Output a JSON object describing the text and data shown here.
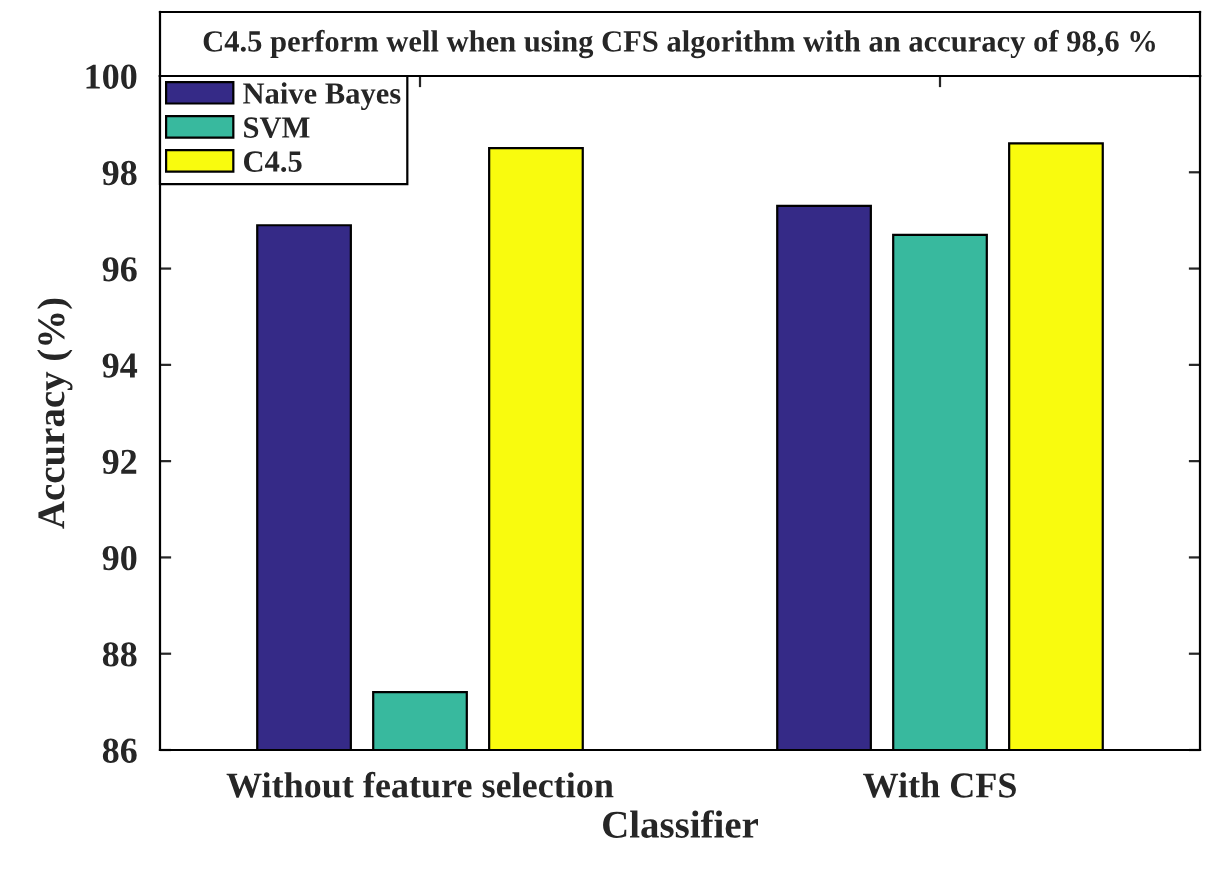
{
  "chart_data": {
    "type": "bar",
    "title": "C4.5 perform well when using CFS algorithm with an accuracy of 98,6 %",
    "xlabel": "Classifier",
    "ylabel": "Accuracy (%)",
    "categories": [
      "Without feature selection",
      "With CFS"
    ],
    "series": [
      {
        "name": "Naive Bayes",
        "color": "#352a87",
        "values": [
          96.9,
          97.3
        ]
      },
      {
        "name": "SVM",
        "color": "#38b99e",
        "values": [
          87.2,
          96.7
        ]
      },
      {
        "name": "C4.5",
        "color": "#f9fb0e",
        "values": [
          98.5,
          98.6
        ]
      }
    ],
    "ylim": [
      86,
      100
    ],
    "yticks": [
      86,
      88,
      90,
      92,
      94,
      96,
      98,
      100
    ],
    "grid": false,
    "legend": "top left"
  }
}
